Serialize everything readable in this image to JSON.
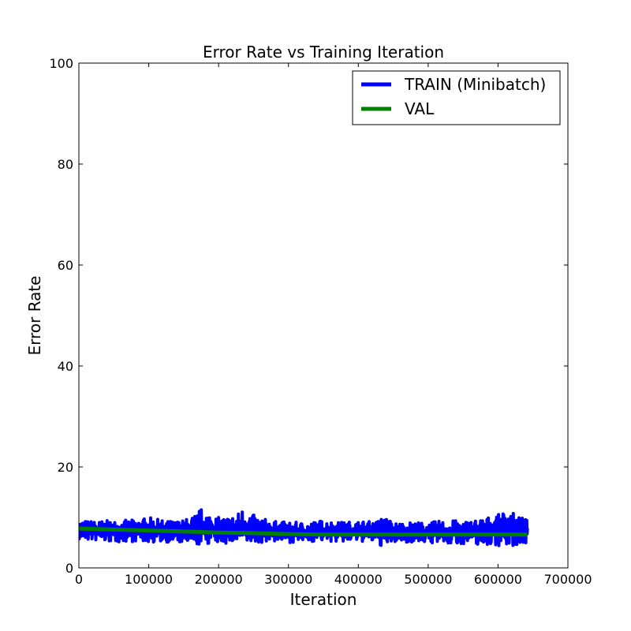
{
  "chart_data": {
    "type": "line",
    "title": "Error Rate vs Training Iteration",
    "xlabel": "Iteration",
    "ylabel": "Error Rate",
    "xlim": [
      0,
      700000
    ],
    "ylim": [
      0,
      100
    ],
    "xticks": [
      0,
      100000,
      200000,
      300000,
      400000,
      500000,
      600000,
      700000
    ],
    "xtick_labels": [
      "0",
      "100000",
      "200000",
      "300000",
      "400000",
      "500000",
      "600000",
      "700000"
    ],
    "yticks": [
      0,
      20,
      40,
      60,
      80,
      100
    ],
    "ytick_labels": [
      "0",
      "20",
      "40",
      "60",
      "80",
      "100"
    ],
    "grid": false,
    "legend_position": "top-right",
    "series": [
      {
        "name": "TRAIN (Minibatch)",
        "color": "#0000ff",
        "style": "noisy band",
        "x": [
          0,
          25000,
          50000,
          75000,
          100000,
          125000,
          150000,
          165000,
          175000,
          200000,
          225000,
          235000,
          250000,
          275000,
          300000,
          325000,
          350000,
          375000,
          400000,
          425000,
          435000,
          450000,
          475000,
          500000,
          525000,
          550000,
          575000,
          600000,
          615000,
          625000,
          642000
        ],
        "y_low": [
          5.5,
          5.3,
          5.0,
          5.2,
          5.0,
          5.1,
          4.8,
          4.0,
          4.6,
          4.8,
          4.7,
          4.5,
          4.8,
          5.2,
          5.0,
          5.1,
          5.3,
          5.0,
          5.2,
          5.0,
          4.0,
          5.0,
          5.1,
          5.0,
          4.5,
          4.8,
          4.5,
          4.4,
          4.2,
          4.3,
          5.0
        ],
        "y_high": [
          9.5,
          9.3,
          9.4,
          9.5,
          10.0,
          9.3,
          9.5,
          10.5,
          11.8,
          10.0,
          10.5,
          12.0,
          10.5,
          9.3,
          9.1,
          9.0,
          9.5,
          9.1,
          9.3,
          9.2,
          10.5,
          9.0,
          9.1,
          9.0,
          9.5,
          9.3,
          9.8,
          10.5,
          11.8,
          10.5,
          9.5
        ]
      },
      {
        "name": "VAL",
        "color": "#008000",
        "x": [
          0,
          50000,
          100000,
          150000,
          200000,
          250000,
          300000,
          350000,
          400000,
          450000,
          500000,
          550000,
          600000,
          642000
        ],
        "y": [
          7.8,
          7.6,
          7.4,
          7.2,
          7.0,
          6.9,
          6.7,
          6.6,
          6.6,
          6.6,
          6.6,
          6.6,
          6.6,
          6.6
        ]
      }
    ]
  }
}
